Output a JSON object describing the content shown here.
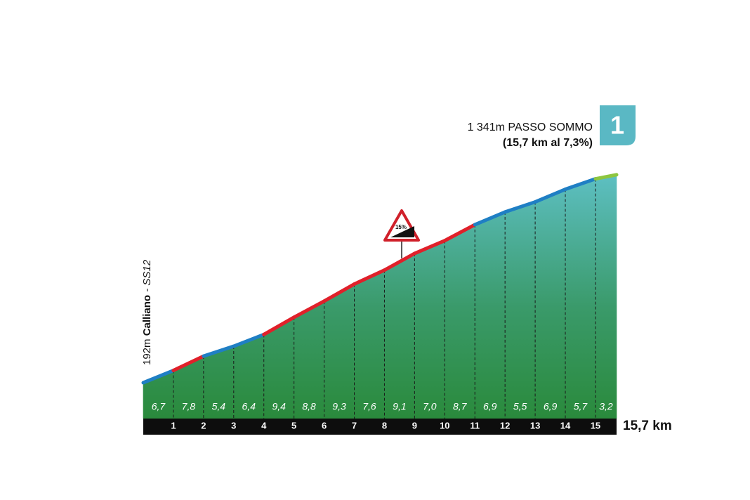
{
  "chart_data": {
    "type": "climb-profile",
    "start": {
      "elevation": {
        "value": 192,
        "label": "192m"
      },
      "name": "Calliano",
      "road": "- SS12"
    },
    "summit": {
      "elevation": {
        "value": 1341,
        "label": "1 341m"
      },
      "name": "PASSO SOMMO",
      "summary": "(15,7 km al 7,3%)",
      "category": "1"
    },
    "xlim": [
      0,
      15.7
    ],
    "xticks": [
      1,
      2,
      3,
      4,
      5,
      6,
      7,
      8,
      9,
      10,
      11,
      12,
      13,
      14,
      15,
      {
        "value": 15.7,
        "label": "15,7 km"
      }
    ],
    "gradients": [
      6.7,
      7.8,
      5.4,
      6.4,
      9.4,
      8.8,
      9.3,
      7.6,
      9.1,
      7.0,
      8.7,
      6.9,
      5.5,
      6.9,
      5.7,
      3.2
    ],
    "value_labels": [
      "6,7",
      "7,8",
      "5,4",
      "6,4",
      "9,4",
      "8,8",
      "9,3",
      "7,6",
      "9,1",
      "7,0",
      "8,7",
      "6,9",
      "5,5",
      "6,9",
      "5,7",
      "3,2"
    ],
    "segment_colors": [
      "#1f7fc4",
      "#e0202a",
      "#1f7fc4",
      "#1f7fc4",
      "#e0202a",
      "#e0202a",
      "#e0202a",
      "#e0202a",
      "#e0202a",
      "#e0202a",
      "#e0202a",
      "#1f7fc4",
      "#1f7fc4",
      "#1f7fc4",
      "#1f7fc4",
      "#8dc63f"
    ],
    "max_gradient_sign": "15%"
  }
}
